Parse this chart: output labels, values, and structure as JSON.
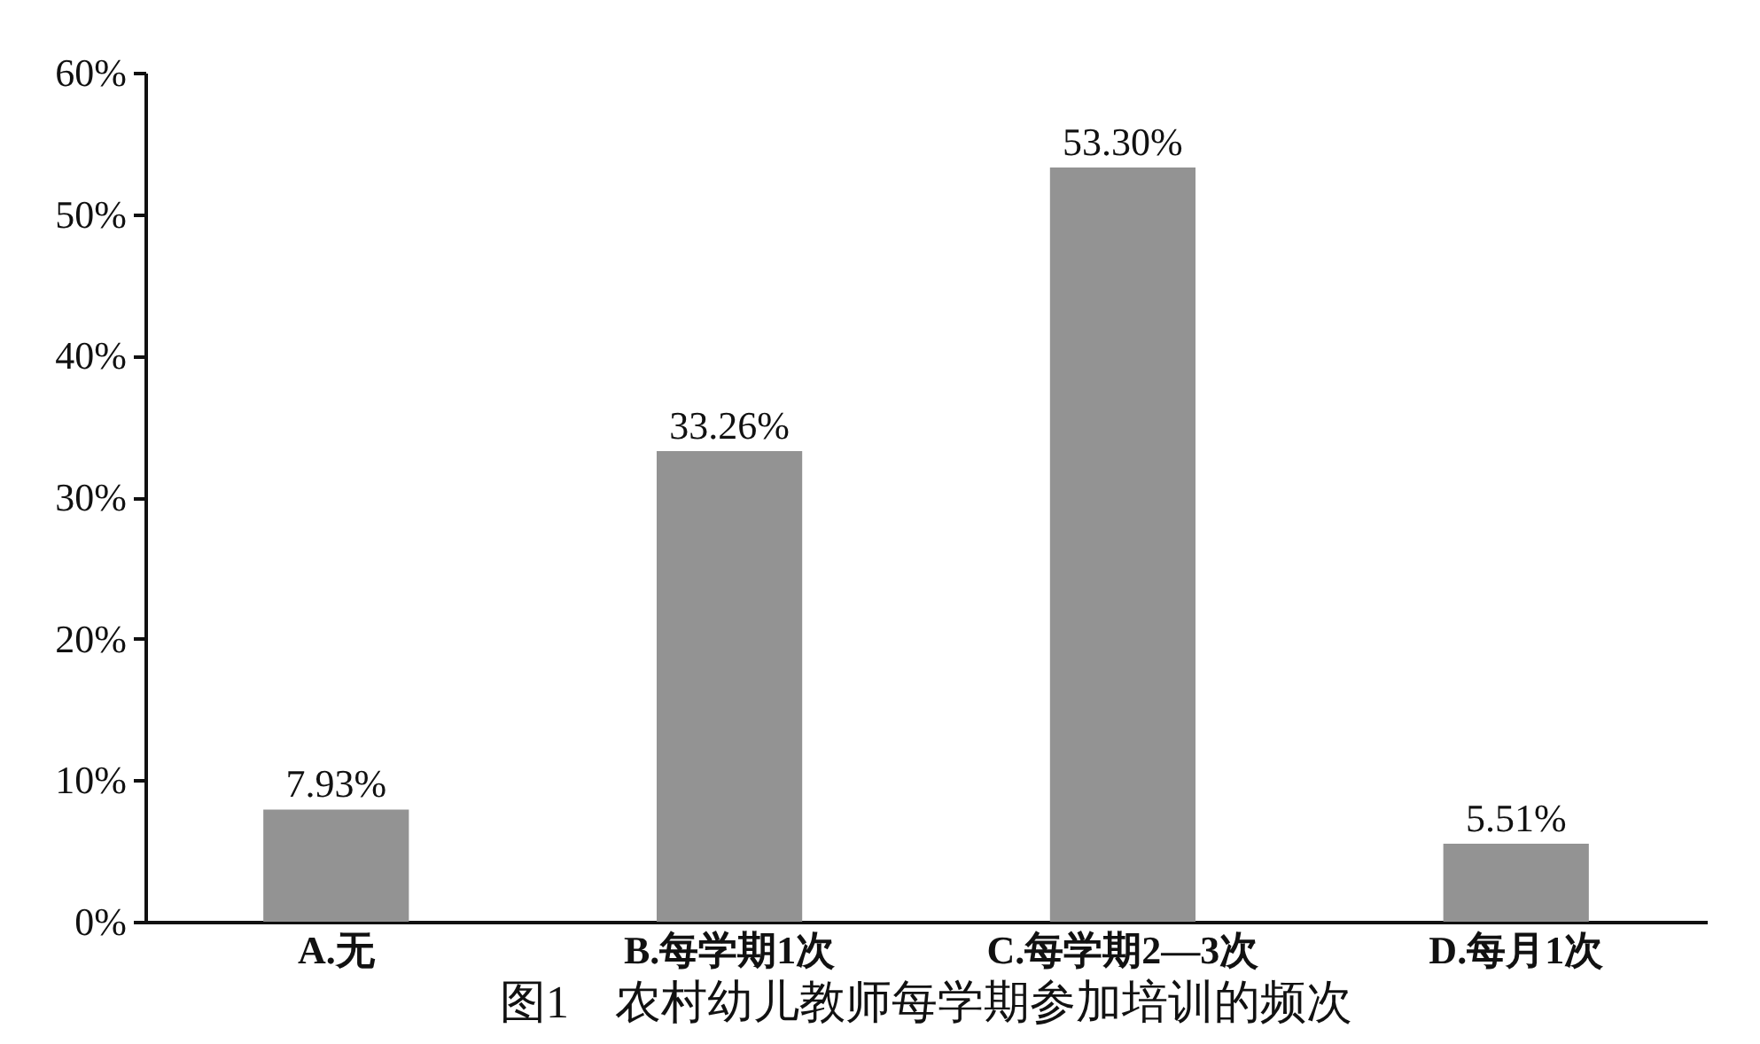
{
  "chart_data": {
    "type": "bar",
    "title": "图1　农村幼儿教师每学期参加培训的频次",
    "categories": [
      "A.无",
      "B.每学期1次",
      "C.每学期2—3次",
      "D.每月1次"
    ],
    "values": [
      7.93,
      33.26,
      53.3,
      5.51
    ],
    "value_labels": [
      "7.93%",
      "33.26%",
      "53.30%",
      "5.51%"
    ],
    "color": "#939393",
    "ylim": [
      0,
      60
    ],
    "yticks": [
      {
        "value": 0,
        "label": "0%"
      },
      {
        "value": 10,
        "label": "10%"
      },
      {
        "value": 20,
        "label": "20%"
      },
      {
        "value": 30,
        "label": "30%"
      },
      {
        "value": 40,
        "label": "40%"
      },
      {
        "value": 50,
        "label": "50%"
      },
      {
        "value": 60,
        "label": "60%"
      }
    ],
    "grid": false
  }
}
